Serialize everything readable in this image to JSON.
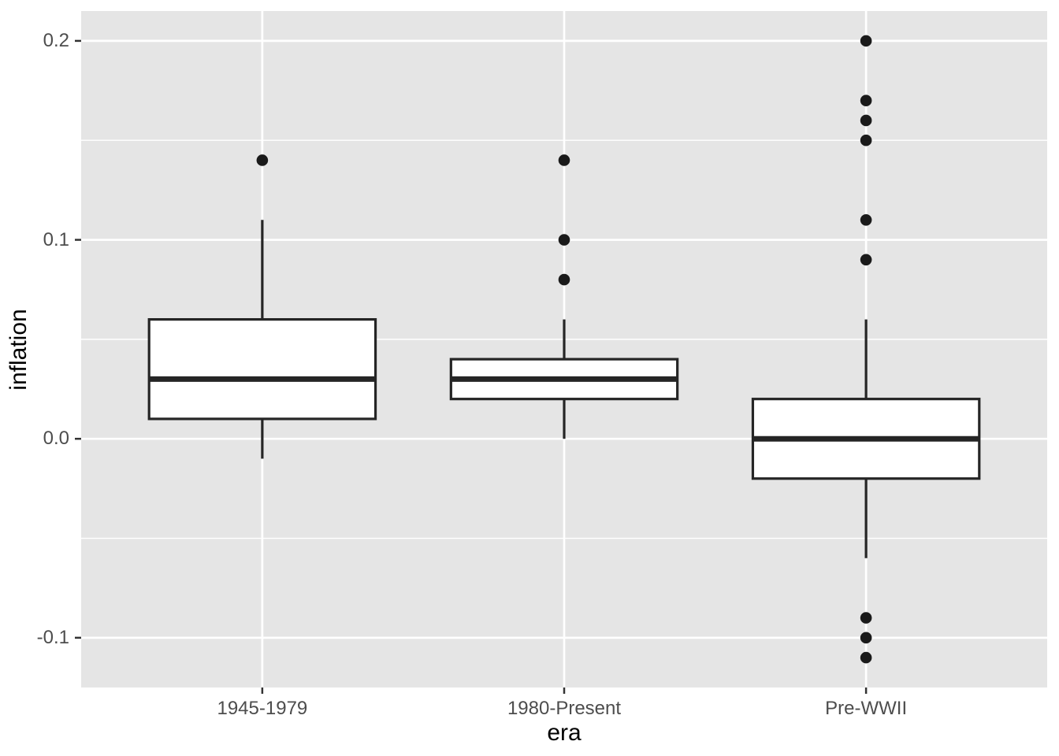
{
  "figure": {
    "colors": {
      "figure_background": "#ffffff",
      "panel_background": "#e5e5e5",
      "grid_major": "#ffffff",
      "grid_minor": "#ffffff",
      "box_fill": "#ffffff",
      "box_stroke": "#252525",
      "outlier_fill": "#1a1a1a",
      "tick_mark": "#333333",
      "tick_text": "#4d4d4d",
      "axis_title_text": "#000000"
    }
  },
  "chart_data": {
    "type": "boxplot",
    "title": "",
    "xlabel": "era",
    "ylabel": "inflation",
    "categories": [
      "1945-1979",
      "1980-Present",
      "Pre-WWII"
    ],
    "y_ticks": [
      0.2,
      0.1,
      0.0,
      -0.1
    ],
    "y_tick_labels": [
      "0.2",
      "0.1",
      "0.0",
      "-0.1"
    ],
    "y_minor_ticks": [
      0.15,
      0.05,
      -0.05
    ],
    "ylim": [
      -0.125,
      0.215
    ],
    "grid": "horizontal major + minor gridlines, vertical major gridline at each category",
    "legend": "none",
    "series": [
      {
        "category": "1945-1979",
        "lower_whisker": -0.01,
        "q1": 0.01,
        "median": 0.03,
        "q3": 0.06,
        "upper_whisker": 0.11,
        "outliers": [
          0.14
        ]
      },
      {
        "category": "1980-Present",
        "lower_whisker": 0.0,
        "q1": 0.02,
        "median": 0.03,
        "q3": 0.04,
        "upper_whisker": 0.06,
        "outliers": [
          0.08,
          0.1,
          0.14
        ]
      },
      {
        "category": "Pre-WWII",
        "lower_whisker": -0.06,
        "q1": -0.02,
        "median": 0.0,
        "q3": 0.02,
        "upper_whisker": 0.06,
        "outliers": [
          0.2,
          0.17,
          0.16,
          0.15,
          0.11,
          0.09,
          -0.09,
          -0.1,
          -0.11
        ]
      }
    ]
  }
}
